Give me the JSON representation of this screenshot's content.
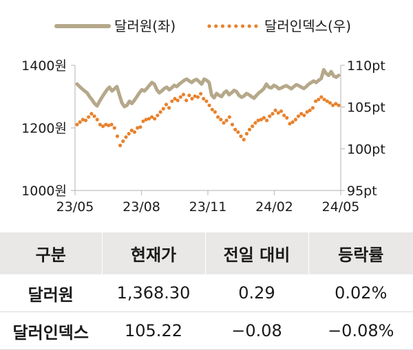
{
  "chart_data": {
    "type": "line",
    "title": "",
    "legend_position": "top",
    "x_ticks": [
      "23/05",
      "23/08",
      "23/11",
      "24/02",
      "24/05"
    ],
    "y_left": {
      "range": [
        1000,
        1400
      ],
      "ticks": [
        "1400원",
        "1200원",
        "1000원"
      ],
      "tick_values": [
        1400,
        1200,
        1000
      ]
    },
    "y_right": {
      "range": [
        95,
        110
      ],
      "ticks": [
        "110pt",
        "105pt",
        "100pt",
        "95pt"
      ],
      "tick_values": [
        110,
        105,
        100,
        95
      ]
    },
    "grid": false,
    "series": [
      {
        "name": "달러원(좌)",
        "axis": "left",
        "style": "solid",
        "color": "#b5a88a",
        "values": [
          1340,
          1332,
          1325,
          1318,
          1312,
          1300,
          1290,
          1278,
          1270,
          1285,
          1298,
          1310,
          1322,
          1330,
          1318,
          1325,
          1332,
          1305,
          1280,
          1268,
          1272,
          1285,
          1278,
          1288,
          1300,
          1312,
          1322,
          1318,
          1326,
          1336,
          1345,
          1340,
          1322,
          1312,
          1318,
          1326,
          1330,
          1322,
          1328,
          1336,
          1332,
          1340,
          1346,
          1352,
          1356,
          1350,
          1345,
          1352,
          1355,
          1348,
          1340,
          1356,
          1352,
          1345,
          1305,
          1296,
          1310,
          1304,
          1300,
          1312,
          1318,
          1306,
          1312,
          1320,
          1316,
          1304,
          1298,
          1302,
          1310,
          1306,
          1300,
          1295,
          1304,
          1312,
          1318,
          1326,
          1340,
          1330,
          1328,
          1336,
          1332,
          1325,
          1328,
          1332,
          1335,
          1330,
          1325,
          1332,
          1338,
          1335,
          1330,
          1326,
          1332,
          1340,
          1345,
          1350,
          1345,
          1352,
          1358,
          1386,
          1374,
          1368,
          1380,
          1366,
          1362,
          1368
        ]
      },
      {
        "name": "달러인덱스(우)",
        "axis": "right",
        "style": "dotted",
        "color": "#e8822e",
        "values": [
          102.9,
          103.2,
          103.5,
          103.4,
          103.8,
          104.2,
          103.9,
          103.5,
          102.9,
          102.7,
          102.9,
          102.8,
          102.9,
          102.5,
          101.5,
          100.4,
          100.9,
          101.4,
          101.8,
          102.2,
          102.0,
          102.5,
          102.6,
          103.3,
          103.5,
          103.6,
          103.8,
          103.6,
          104.0,
          104.4,
          104.8,
          105.3,
          104.9,
          105.7,
          106.0,
          105.8,
          106.2,
          106.5,
          105.8,
          106.4,
          106.0,
          106.3,
          106.2,
          106.6,
          106.0,
          105.7,
          105.2,
          104.7,
          104.4,
          103.8,
          103.5,
          103.1,
          103.4,
          103.8,
          102.9,
          102.3,
          102.0,
          101.5,
          101.1,
          101.8,
          102.3,
          102.7,
          103.1,
          103.4,
          103.5,
          103.7,
          103.4,
          103.9,
          104.2,
          104.6,
          104.3,
          104.5,
          104.0,
          103.7,
          103.0,
          103.2,
          103.5,
          103.9,
          104.2,
          104.0,
          104.4,
          104.6,
          104.9,
          105.7,
          105.9,
          106.2,
          105.9,
          105.7,
          105.5,
          105.2,
          105.4,
          105.2
        ]
      }
    ]
  },
  "table": {
    "headers": [
      "구분",
      "현재가",
      "전일 대비",
      "등락률"
    ],
    "rows": [
      [
        "달러원",
        "1,368.30",
        "0.29",
        "0.02%"
      ],
      [
        "달러인덱스",
        "105.22",
        "−0.08",
        "−0.08%"
      ]
    ]
  }
}
